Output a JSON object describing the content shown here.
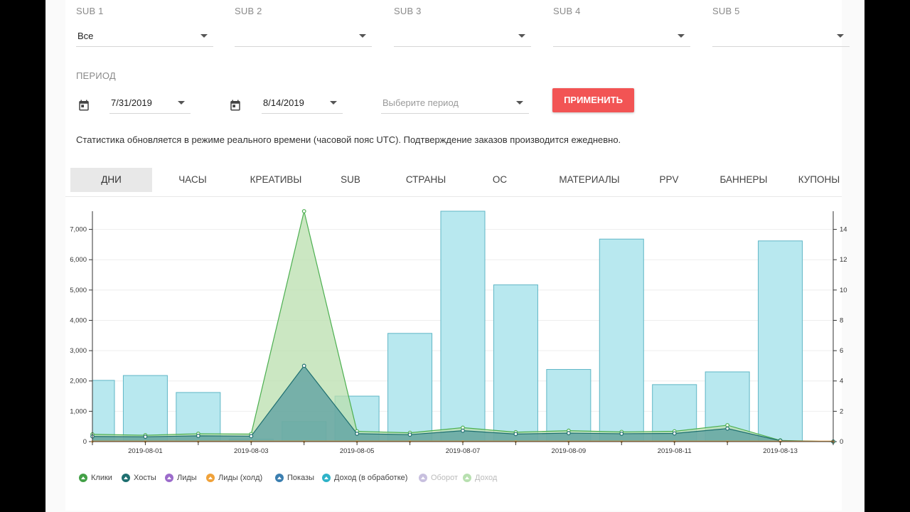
{
  "filters": {
    "subs": [
      {
        "label": "SUB 1",
        "value": "Все"
      },
      {
        "label": "SUB 2",
        "value": ""
      },
      {
        "label": "SUB 3",
        "value": ""
      },
      {
        "label": "SUB 4",
        "value": ""
      },
      {
        "label": "SUB 5",
        "value": ""
      }
    ],
    "period_label": "ПЕРИОД",
    "date_from": "7/31/2019",
    "date_to": "8/14/2019",
    "period_placeholder": "Выберите период",
    "apply_label": "ПРИМЕНИТЬ"
  },
  "notice": "Статистика обновляется в режиме реального времени (часовой пояс UTC). Подтверждение заказов производится ежедневно.",
  "tabs": [
    "ДНИ",
    "ЧАСЫ",
    "КРЕАТИВЫ",
    "SUB",
    "СТРАНЫ",
    "ОС",
    "МАТЕРИАЛЫ",
    "PPV",
    "БАННЕРЫ",
    "КУПОНЫ"
  ],
  "active_tab": "ДНИ",
  "colors": {
    "bars": "#b8e8ef",
    "bar_stroke": "#5fb6c6",
    "clicks": "#4caf50",
    "clicks_fill": "#b9dfad",
    "hosts": "#1f6f70",
    "hosts_fill": "#5a9ea0",
    "leads": "#9c6ccb",
    "leads_hold": "#f0a23a",
    "shows": "#3c7fb0",
    "revenue_processing": "#2fb3c8",
    "turnover": "#c8c0df",
    "revenue": "#b8e0b0",
    "accent": "#f25454"
  },
  "legend": [
    {
      "label": "Клики",
      "color": "#43a047",
      "faded": false
    },
    {
      "label": "Хосты",
      "color": "#1f6f70",
      "faded": false
    },
    {
      "label": "Лиды",
      "color": "#9c6ccb",
      "faded": false
    },
    {
      "label": "Лиды (холд)",
      "color": "#f0a23a",
      "faded": false
    },
    {
      "label": "Показы",
      "color": "#3c7fb0",
      "faded": false
    },
    {
      "label": "Доход (в обработке)",
      "color": "#2fb3c8",
      "faded": false
    },
    {
      "label": "Оборот",
      "color": "#c8c0df",
      "faded": true
    },
    {
      "label": "Доход",
      "color": "#b8e0b0",
      "faded": true
    }
  ],
  "chart_data": {
    "type": "bar+line",
    "x": [
      "2019-07-31",
      "2019-08-01",
      "2019-08-02",
      "2019-08-03",
      "2019-08-04",
      "2019-08-05",
      "2019-08-06",
      "2019-08-07",
      "2019-08-08",
      "2019-08-09",
      "2019-08-10",
      "2019-08-11",
      "2019-08-12",
      "2019-08-13",
      "2019-08-14"
    ],
    "x_tick_labels": [
      "2019-08-01",
      "2019-08-03",
      "2019-08-05",
      "2019-08-07",
      "2019-08-09",
      "2019-08-11",
      "2019-08-13"
    ],
    "left_axis": {
      "min": 0,
      "max": 7600,
      "ticks": [
        0,
        1000,
        2000,
        3000,
        4000,
        5000,
        6000,
        7000
      ],
      "tick_labels": [
        "0",
        "1,000",
        "2,000",
        "3,000",
        "4,000",
        "5,000",
        "6,000",
        "7,000"
      ]
    },
    "right_axis": {
      "min": 0,
      "max": 15.2,
      "ticks": [
        0,
        2,
        4,
        6,
        8,
        10,
        12,
        14
      ],
      "tick_labels": [
        "0",
        "2",
        "4",
        "6",
        "8",
        "10",
        "12",
        "14"
      ]
    },
    "series": [
      {
        "name": "Показы",
        "axis": "left",
        "kind": "bar",
        "values": [
          2020,
          2180,
          1620,
          80,
          660,
          1500,
          3570,
          7600,
          5170,
          2380,
          6680,
          1880,
          2300,
          6620,
          0
        ]
      },
      {
        "name": "Клики",
        "axis": "left",
        "kind": "area",
        "values": [
          240,
          210,
          260,
          250,
          7600,
          340,
          290,
          460,
          310,
          360,
          320,
          340,
          540,
          40,
          0
        ]
      },
      {
        "name": "Хосты",
        "axis": "left",
        "kind": "area",
        "values": [
          170,
          160,
          190,
          180,
          2500,
          260,
          230,
          360,
          250,
          280,
          260,
          270,
          430,
          30,
          0
        ]
      },
      {
        "name": "Лиды (холд)",
        "axis": "left",
        "kind": "line",
        "values": [
          0,
          0,
          0,
          0,
          0,
          0,
          0,
          0,
          0,
          0,
          0,
          0,
          0,
          0,
          0
        ]
      },
      {
        "name": "Лиды",
        "axis": "left",
        "kind": "line",
        "values": [
          0,
          0,
          0,
          0,
          0,
          0,
          0,
          0,
          0,
          0,
          0,
          0,
          0,
          0,
          0
        ]
      }
    ]
  }
}
